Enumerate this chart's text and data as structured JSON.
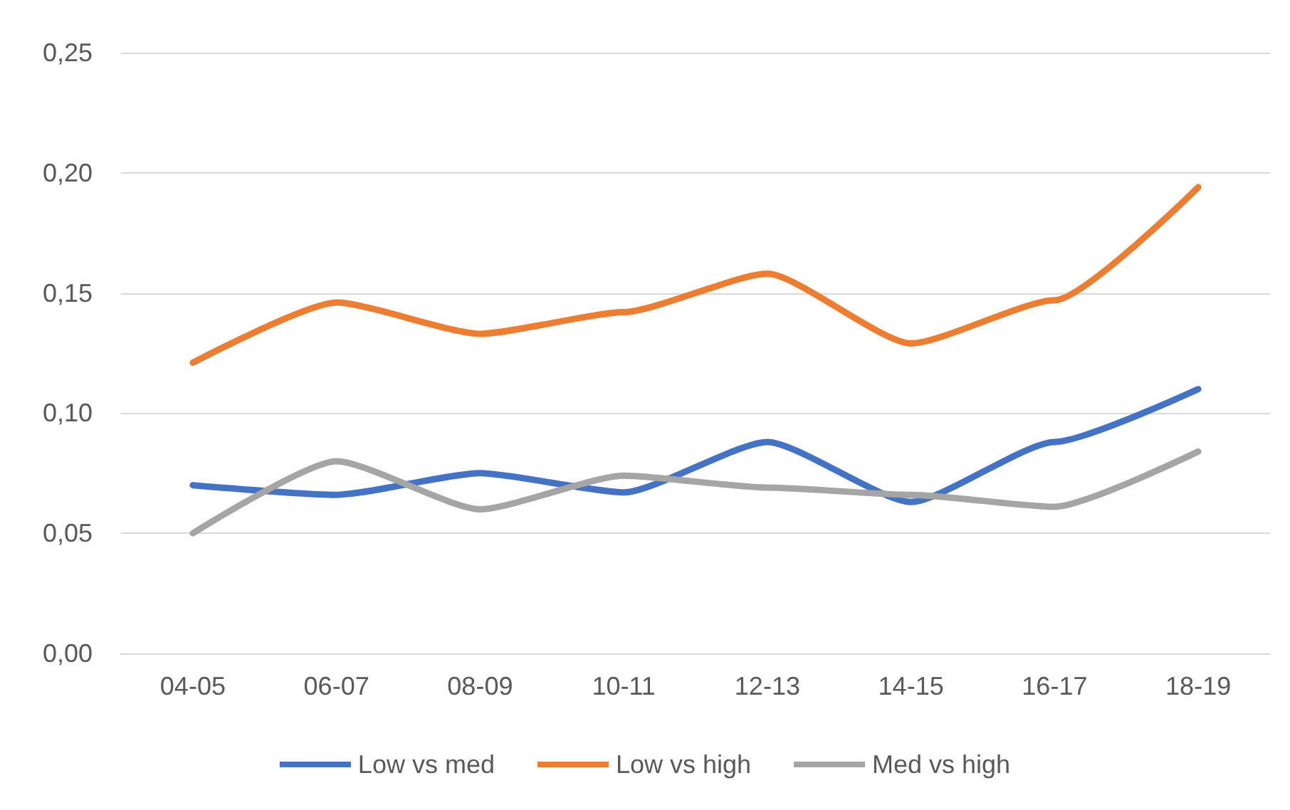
{
  "chart_data": {
    "type": "line",
    "categories": [
      "04-05",
      "06-07",
      "08-09",
      "10-11",
      "12-13",
      "14-15",
      "16-17",
      "18-19"
    ],
    "series": [
      {
        "name": "Low vs med",
        "color": "#4472c4",
        "values": [
          0.07,
          0.066,
          0.075,
          0.067,
          0.088,
          0.063,
          0.088,
          0.11
        ]
      },
      {
        "name": "Low vs high",
        "color": "#ed7d31",
        "values": [
          0.121,
          0.146,
          0.133,
          0.142,
          0.158,
          0.129,
          0.147,
          0.194
        ]
      },
      {
        "name": "Med vs high",
        "color": "#a5a5a5",
        "values": [
          0.05,
          0.08,
          0.06,
          0.074,
          0.069,
          0.066,
          0.061,
          0.084
        ]
      }
    ],
    "ylim": [
      0,
      0.25
    ],
    "yticks": [
      {
        "value": 0,
        "label": "0,00"
      },
      {
        "value": 0.05,
        "label": "0,05"
      },
      {
        "value": 0.1,
        "label": "0,10"
      },
      {
        "value": 0.15,
        "label": "0,15"
      },
      {
        "value": 0.2,
        "label": "0,20"
      },
      {
        "value": 0.25,
        "label": "0,25"
      }
    ],
    "grid": "y",
    "legend": "bottom",
    "marker": "none",
    "line_style": "solid"
  }
}
